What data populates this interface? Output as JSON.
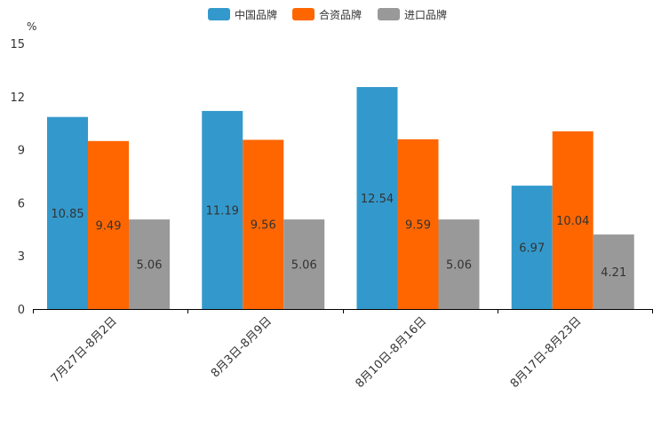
{
  "chart_data": {
    "type": "bar",
    "title": "",
    "xlabel": "",
    "ylabel": "%",
    "ylim": [
      0,
      15
    ],
    "yticks": [
      "0",
      "3",
      "6",
      "9",
      "12",
      "15"
    ],
    "legend_position": "top-center",
    "grid": false,
    "categories": [
      "7月27日-8月2日",
      "8月3日-8月9日",
      "8月10日-8月16日",
      "8月17日-8月23日"
    ],
    "series": [
      {
        "name": "中国品牌",
        "color": "#3399cc",
        "values": [
          10.85,
          11.19,
          12.54,
          6.97
        ],
        "labels": [
          "10.85",
          "11.19",
          "12.54",
          "6.97"
        ]
      },
      {
        "name": "合资品牌",
        "color": "#ff6600",
        "values": [
          9.49,
          9.56,
          9.59,
          10.04
        ],
        "labels": [
          "9.49",
          "9.56",
          "9.59",
          "10.04"
        ]
      },
      {
        "name": "进口品牌",
        "color": "#999999",
        "values": [
          5.06,
          5.06,
          5.06,
          4.21
        ],
        "labels": [
          "5.06",
          "5.06",
          "5.06",
          "4.21"
        ]
      }
    ]
  }
}
